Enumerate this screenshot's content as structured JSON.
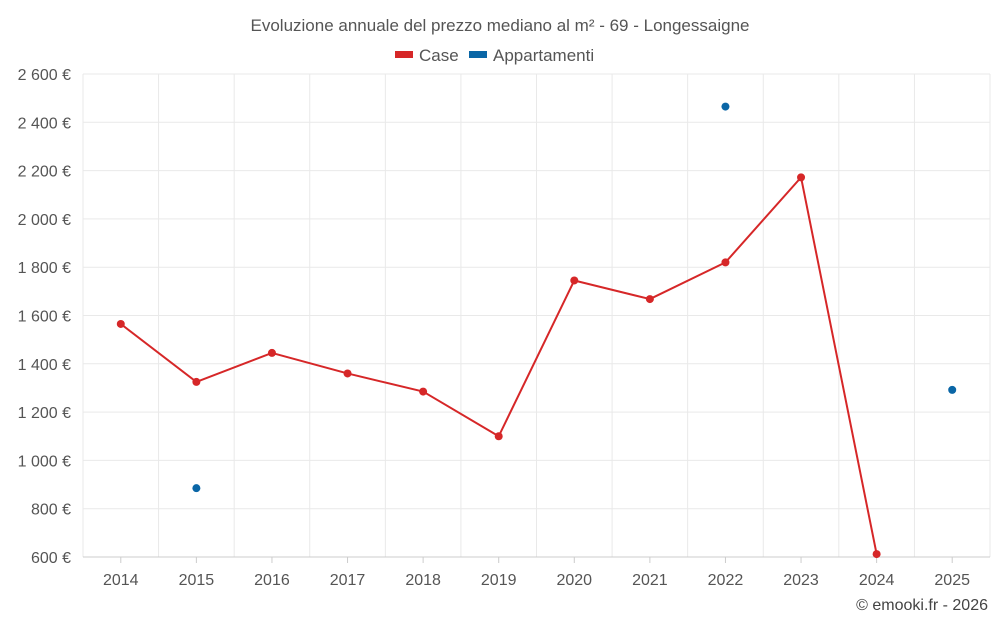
{
  "chart_data": {
    "type": "line",
    "title": "Evoluzione annuale del prezzo mediano al m² - 69 - Longessaigne",
    "categories": [
      "2014",
      "2015",
      "2016",
      "2017",
      "2018",
      "2019",
      "2020",
      "2021",
      "2022",
      "2023",
      "2024",
      "2025"
    ],
    "ylim": [
      600,
      2600
    ],
    "yticks": [
      600,
      800,
      1000,
      1200,
      1400,
      1600,
      1800,
      2000,
      2200,
      2400,
      2600
    ],
    "ytick_labels": [
      "600 €",
      "800 €",
      "1 000 €",
      "1 200 €",
      "1 400 €",
      "1 600 €",
      "1 800 €",
      "2 000 €",
      "2 200 €",
      "2 400 €",
      "2 600 €"
    ],
    "grid": true,
    "legend_position": "top-center",
    "series": [
      {
        "name": "Case",
        "color": "#d62728",
        "values": [
          1565,
          1325,
          1445,
          1360,
          1285,
          1100,
          1745,
          1668,
          1820,
          2172,
          612,
          null
        ],
        "line": true
      },
      {
        "name": "Appartamenti",
        "color": "#0a66a6",
        "values": [
          null,
          885,
          null,
          null,
          null,
          null,
          null,
          null,
          2465,
          null,
          null,
          1292
        ],
        "line": false
      }
    ],
    "credit": "© emooki.fr - 2026"
  }
}
